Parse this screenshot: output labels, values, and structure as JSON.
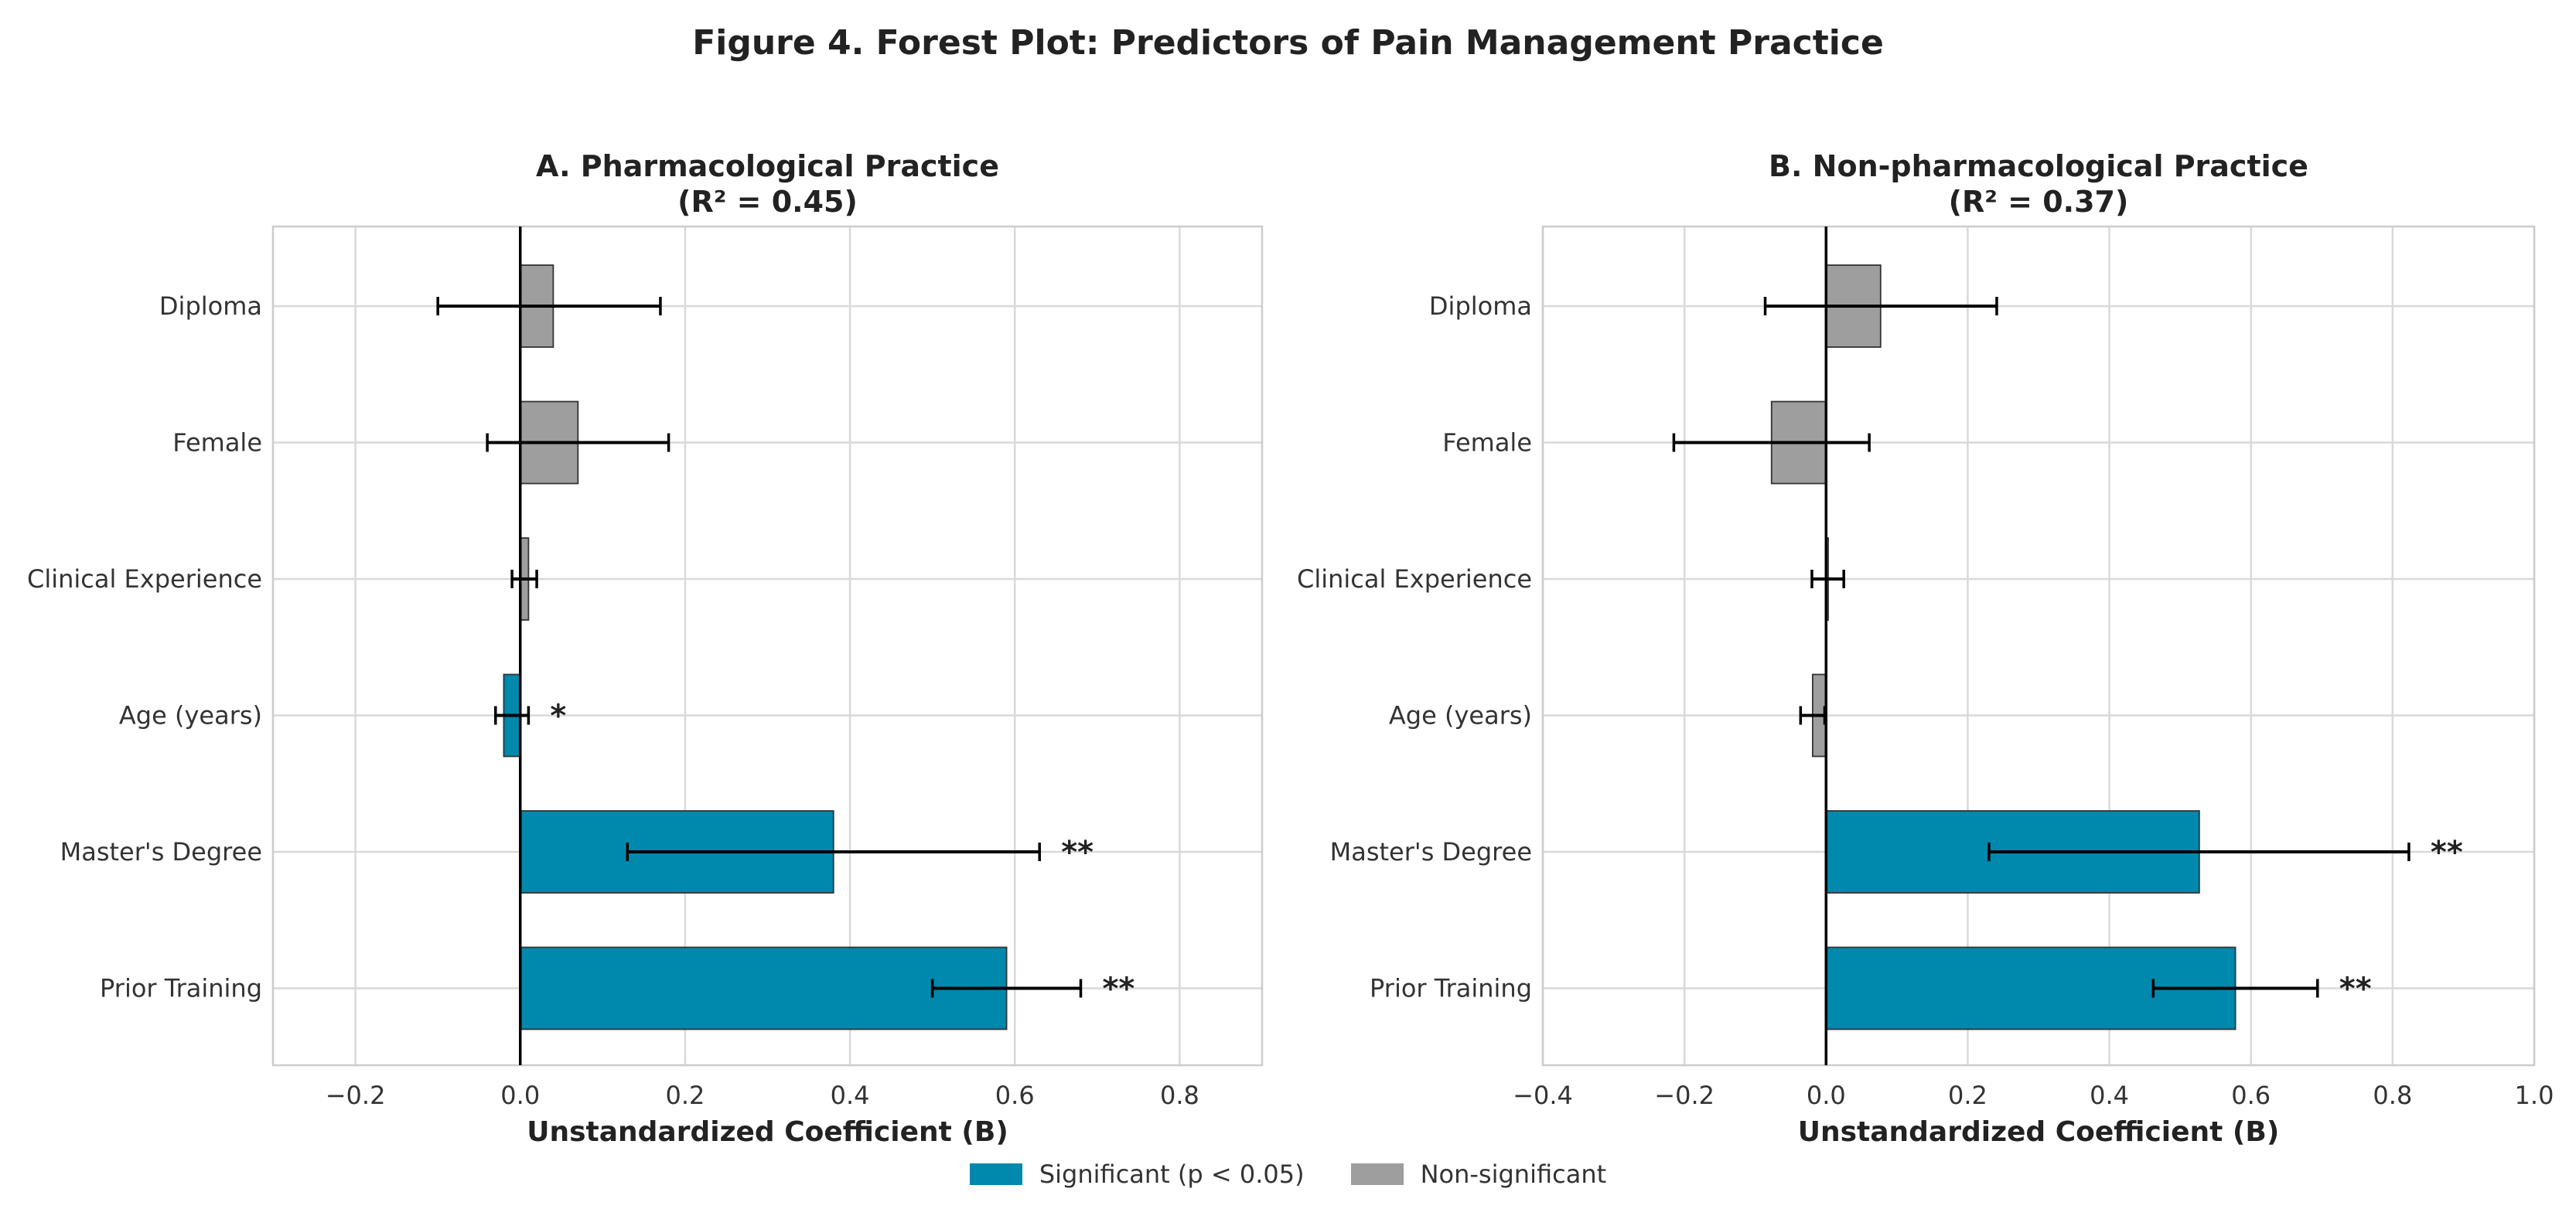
{
  "title": "Figure 4. Forest Plot: Predictors of Pain Management Practice",
  "colors": {
    "significant": "#0088ad",
    "nonsignificant": "#9e9e9e",
    "grid": "#d9d9d9",
    "text": "#222222"
  },
  "legend": {
    "significant": "Significant (p < 0.05)",
    "nonsignificant": "Non-significant"
  },
  "chart_data": [
    {
      "type": "bar",
      "orientation": "horizontal",
      "title": "A. Pharmacological Practice",
      "subtitle": "(R² = 0.45)",
      "xlabel": "Unstandardized Coefficient (B)",
      "xlim": [
        -0.3,
        0.9
      ],
      "xticks": [
        -0.2,
        0.0,
        0.2,
        0.4,
        0.6,
        0.8
      ],
      "tick_labels": [
        "−0.2",
        "0.0",
        "0.2",
        "0.4",
        "0.6",
        "0.8"
      ],
      "categories": [
        "Diploma",
        "Female",
        "Clinical Experience",
        "Age (years)",
        "Master's Degree",
        "Prior Training"
      ],
      "values": [
        0.04,
        0.07,
        0.01,
        -0.02,
        0.38,
        0.59
      ],
      "ci_lower": [
        -0.1,
        -0.04,
        -0.01,
        -0.03,
        0.13,
        0.5
      ],
      "ci_upper": [
        0.17,
        0.18,
        0.02,
        0.01,
        0.63,
        0.68
      ],
      "significant": [
        false,
        false,
        false,
        true,
        true,
        true
      ],
      "stars": [
        "",
        "",
        "",
        "*",
        "**",
        "**"
      ]
    },
    {
      "type": "bar",
      "orientation": "horizontal",
      "title": "B. Non-pharmacological Practice",
      "subtitle": "(R² = 0.37)",
      "xlabel": "Unstandardized Coefficient (B)",
      "xlim": [
        -0.4,
        1.0
      ],
      "xticks": [
        -0.4,
        -0.2,
        0.0,
        0.2,
        0.4,
        0.6,
        0.8,
        1.0
      ],
      "tick_labels": [
        "−0.4",
        "−0.2",
        "0.0",
        "0.2",
        "0.4",
        "0.6",
        "0.8",
        "1.0"
      ],
      "categories": [
        "Diploma",
        "Female",
        "Clinical Experience",
        "Age (years)",
        "Master's Degree",
        "Prior Training"
      ],
      "values": [
        0.077,
        -0.077,
        0.003,
        -0.019,
        0.527,
        0.578
      ],
      "ci_lower": [
        -0.086,
        -0.215,
        -0.02,
        -0.036,
        0.23,
        0.462
      ],
      "ci_upper": [
        0.241,
        0.061,
        0.025,
        -0.002,
        0.823,
        0.694
      ],
      "significant": [
        false,
        false,
        false,
        false,
        true,
        true
      ],
      "stars": [
        "",
        "",
        "",
        "",
        "**",
        "**"
      ]
    }
  ]
}
